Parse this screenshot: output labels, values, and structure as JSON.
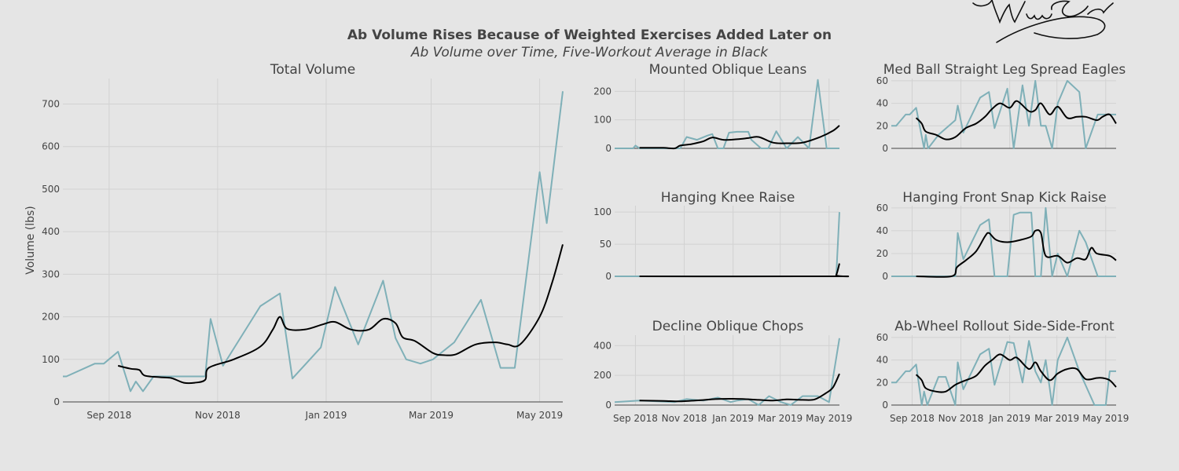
{
  "chart_title": "Ab Volume Rises Because of Weighted Exercises Added Later on",
  "chart_subtitle": "Ab Volume over Time, Five-Workout Average in Black",
  "colors": {
    "raw": "#7fb0b8",
    "avg": "#000000",
    "background": "#e5e5e5",
    "grid": "#d2d2d2"
  },
  "signature_icon": "handwritten-signature",
  "chart_data": [
    {
      "type": "line",
      "title": "Total Volume",
      "ylabel": "Volume (lbs)",
      "x_tick_labels": [
        "Sep 2018",
        "Nov 2018",
        "Jan 2019",
        "Mar 2019",
        "May 2019"
      ],
      "x_tick_dates": [
        "2018-09-01",
        "2018-11-01",
        "2019-01-01",
        "2019-03-01",
        "2019-05-01"
      ],
      "x_range": [
        "2018-08-06",
        "2019-05-14"
      ],
      "y_ticks": [
        0,
        100,
        200,
        300,
        400,
        500,
        600,
        700
      ],
      "ylim": [
        0,
        760
      ],
      "series": [
        {
          "role": "raw",
          "x": [
            "2018-08-06",
            "2018-08-08",
            "2018-08-24",
            "2018-08-29",
            "2018-09-06",
            "2018-09-13",
            "2018-09-16",
            "2018-09-20",
            "2018-09-26",
            "2018-10-04",
            "2018-10-25",
            "2018-10-28",
            "2018-11-04",
            "2018-11-25",
            "2018-12-06",
            "2018-12-13",
            "2018-12-29",
            "2019-01-06",
            "2019-01-19",
            "2019-02-02",
            "2019-02-09",
            "2019-02-15",
            "2019-02-23",
            "2019-03-02",
            "2019-03-14",
            "2019-03-29",
            "2019-04-09",
            "2019-04-17",
            "2019-05-01",
            "2019-05-05",
            "2019-05-14"
          ],
          "y": [
            60,
            60,
            90,
            90,
            118,
            25,
            48,
            25,
            60,
            60,
            60,
            195,
            85,
            225,
            255,
            55,
            128,
            270,
            135,
            285,
            150,
            100,
            90,
            100,
            140,
            240,
            80,
            80,
            540,
            420,
            730
          ]
        },
        {
          "role": "avg",
          "x": [
            "2018-09-06",
            "2018-09-13",
            "2018-09-18",
            "2018-09-21",
            "2018-09-30",
            "2018-10-06",
            "2018-10-13",
            "2018-10-19",
            "2018-10-25",
            "2018-10-27",
            "2018-11-10",
            "2018-11-25",
            "2018-12-02",
            "2018-12-06",
            "2018-12-10",
            "2018-12-20",
            "2018-12-30",
            "2019-01-06",
            "2019-01-15",
            "2019-01-25",
            "2019-02-02",
            "2019-02-09",
            "2019-02-13",
            "2019-02-20",
            "2019-03-02",
            "2019-03-08",
            "2019-03-15",
            "2019-03-26",
            "2019-04-06",
            "2019-04-13",
            "2019-04-20",
            "2019-05-01",
            "2019-05-08",
            "2019-05-14"
          ],
          "y": [
            85,
            78,
            75,
            62,
            58,
            56,
            45,
            45,
            52,
            80,
            100,
            130,
            170,
            200,
            172,
            170,
            182,
            188,
            170,
            170,
            195,
            185,
            152,
            143,
            115,
            110,
            112,
            135,
            140,
            135,
            135,
            200,
            280,
            370
          ]
        }
      ]
    },
    {
      "type": "line",
      "title": "Mounted Oblique Leans",
      "x_range": [
        "2018-08-06",
        "2019-05-14"
      ],
      "y_ticks": [
        0,
        100,
        200
      ],
      "ylim": [
        0,
        245
      ],
      "series": [
        {
          "role": "raw",
          "x": [
            "2018-08-06",
            "2018-08-29",
            "2018-09-01",
            "2018-09-06",
            "2018-10-20",
            "2018-10-27",
            "2018-11-04",
            "2018-11-17",
            "2018-11-30",
            "2018-12-06",
            "2018-12-13",
            "2018-12-20",
            "2018-12-27",
            "2019-01-06",
            "2019-01-20",
            "2019-01-24",
            "2019-02-05",
            "2019-02-14",
            "2019-02-24",
            "2019-03-09",
            "2019-03-23",
            "2019-04-06",
            "2019-04-17",
            "2019-04-28",
            "2019-05-04",
            "2019-05-09",
            "2019-05-14"
          ],
          "y": [
            0,
            0,
            10,
            0,
            0,
            0,
            40,
            30,
            45,
            50,
            0,
            0,
            55,
            58,
            58,
            30,
            0,
            0,
            60,
            0,
            40,
            0,
            240,
            0,
            0,
            0,
            0
          ]
        },
        {
          "role": "avg",
          "x": [
            "2018-09-06",
            "2018-09-20",
            "2018-10-06",
            "2018-10-20",
            "2018-10-27",
            "2018-11-10",
            "2018-11-25",
            "2018-12-06",
            "2018-12-20",
            "2019-01-06",
            "2019-01-20",
            "2019-02-02",
            "2019-02-20",
            "2019-03-09",
            "2019-03-29",
            "2019-04-20",
            "2019-05-06",
            "2019-05-14"
          ],
          "y": [
            2,
            2,
            2,
            0,
            10,
            15,
            25,
            38,
            30,
            32,
            36,
            40,
            20,
            18,
            20,
            40,
            62,
            80
          ]
        }
      ]
    },
    {
      "type": "line",
      "title": "Med Ball Straight Leg Spread Eagles",
      "x_range": [
        "2018-08-06",
        "2019-05-14"
      ],
      "y_ticks": [
        0,
        20,
        40,
        60
      ],
      "ylim": [
        0,
        62
      ],
      "series": [
        {
          "role": "raw",
          "x": [
            "2018-08-06",
            "2018-08-12",
            "2018-08-24",
            "2018-08-29",
            "2018-09-06",
            "2018-09-16",
            "2018-09-18",
            "2018-09-21",
            "2018-10-04",
            "2018-10-25",
            "2018-10-28",
            "2018-11-04",
            "2018-11-25",
            "2018-12-06",
            "2018-12-13",
            "2018-12-29",
            "2019-01-06",
            "2019-01-17",
            "2019-01-25",
            "2019-02-02",
            "2019-02-09",
            "2019-02-15",
            "2019-02-23",
            "2019-03-02",
            "2019-03-14",
            "2019-03-29",
            "2019-04-06",
            "2019-04-21",
            "2019-05-06",
            "2019-05-14"
          ],
          "y": [
            20,
            20,
            30,
            30,
            36,
            0,
            12,
            0,
            12,
            25,
            38,
            14,
            45,
            50,
            18,
            53,
            0,
            56,
            20,
            60,
            20,
            20,
            0,
            40,
            60,
            50,
            0,
            30,
            30,
            30
          ]
        },
        {
          "role": "avg",
          "x": [
            "2018-09-06",
            "2018-09-13",
            "2018-09-18",
            "2018-10-01",
            "2018-10-13",
            "2018-10-25",
            "2018-11-07",
            "2018-11-20",
            "2018-12-01",
            "2018-12-10",
            "2018-12-20",
            "2019-01-01",
            "2019-01-10",
            "2019-01-25",
            "2019-02-02",
            "2019-02-09",
            "2019-02-20",
            "2019-03-02",
            "2019-03-14",
            "2019-03-26",
            "2019-04-06",
            "2019-04-20",
            "2019-04-27",
            "2019-05-06",
            "2019-05-14"
          ],
          "y": [
            27,
            22,
            15,
            12,
            8,
            10,
            18,
            22,
            28,
            35,
            40,
            36,
            42,
            33,
            34,
            40,
            30,
            37,
            27,
            28,
            28,
            25,
            28,
            30,
            22
          ]
        }
      ]
    },
    {
      "type": "line",
      "title": "Hanging Knee Raise",
      "x_range": [
        "2018-08-06",
        "2019-05-14"
      ],
      "y_ticks": [
        0,
        50,
        100
      ],
      "ylim": [
        0,
        110
      ],
      "series": [
        {
          "role": "raw",
          "x": [
            "2018-08-06",
            "2019-05-08",
            "2019-05-10",
            "2019-05-14"
          ],
          "y": [
            0,
            0,
            0,
            100
          ]
        },
        {
          "role": "avg",
          "x": [
            "2018-09-06",
            "2019-05-06",
            "2019-05-10",
            "2019-05-14"
          ],
          "y": [
            0,
            0,
            2,
            20
          ]
        }
      ]
    },
    {
      "type": "line",
      "title": "Hanging Front Snap Kick Raise",
      "x_range": [
        "2018-08-06",
        "2019-05-14"
      ],
      "y_ticks": [
        0,
        20,
        40,
        60
      ],
      "ylim": [
        0,
        62
      ],
      "series": [
        {
          "role": "raw",
          "x": [
            "2018-08-06",
            "2018-10-20",
            "2018-10-25",
            "2018-10-28",
            "2018-11-04",
            "2018-11-25",
            "2018-12-06",
            "2018-12-13",
            "2018-12-29",
            "2019-01-06",
            "2019-01-14",
            "2019-01-28",
            "2019-02-02",
            "2019-02-09",
            "2019-02-15",
            "2019-02-23",
            "2019-03-02",
            "2019-03-14",
            "2019-03-29",
            "2019-04-06",
            "2019-04-21",
            "2019-05-06",
            "2019-05-14"
          ],
          "y": [
            0,
            0,
            0,
            38,
            15,
            45,
            50,
            0,
            0,
            54,
            56,
            56,
            0,
            0,
            60,
            0,
            20,
            0,
            40,
            30,
            0,
            0,
            0
          ]
        },
        {
          "role": "avg",
          "x": [
            "2018-09-06",
            "2018-10-20",
            "2018-10-27",
            "2018-11-07",
            "2018-11-20",
            "2018-12-01",
            "2018-12-06",
            "2018-12-15",
            "2018-12-29",
            "2019-01-15",
            "2019-01-28",
            "2019-02-02",
            "2019-02-09",
            "2019-02-15",
            "2019-03-02",
            "2019-03-14",
            "2019-03-26",
            "2019-04-06",
            "2019-04-13",
            "2019-04-20",
            "2019-05-06",
            "2019-05-14"
          ],
          "y": [
            0,
            0,
            8,
            14,
            22,
            35,
            38,
            32,
            30,
            32,
            35,
            40,
            38,
            18,
            18,
            12,
            16,
            15,
            25,
            20,
            18,
            14
          ]
        }
      ]
    },
    {
      "type": "line",
      "title": "Decline Oblique Chops",
      "x_tick_labels": [
        "Sep 2018",
        "Nov 2018",
        "Jan 2019",
        "Mar 2019",
        "May 2019"
      ],
      "x_tick_dates": [
        "2018-09-01",
        "2018-11-01",
        "2019-01-01",
        "2019-03-01",
        "2019-05-01"
      ],
      "x_range": [
        "2018-08-06",
        "2019-05-14"
      ],
      "y_ticks": [
        0,
        200,
        400
      ],
      "ylim": [
        0,
        470
      ],
      "series": [
        {
          "role": "raw",
          "x": [
            "2018-08-06",
            "2018-09-06",
            "2018-10-20",
            "2018-11-04",
            "2018-11-25",
            "2018-12-13",
            "2018-12-29",
            "2019-01-06",
            "2019-01-20",
            "2019-02-02",
            "2019-02-15",
            "2019-03-02",
            "2019-03-14",
            "2019-03-29",
            "2019-04-17",
            "2019-05-01",
            "2019-05-14"
          ],
          "y": [
            20,
            30,
            20,
            40,
            30,
            50,
            20,
            30,
            40,
            0,
            60,
            20,
            0,
            60,
            60,
            20,
            450
          ]
        },
        {
          "role": "avg",
          "x": [
            "2018-09-06",
            "2018-10-06",
            "2018-10-27",
            "2018-11-20",
            "2018-12-10",
            "2018-12-30",
            "2019-01-15",
            "2019-02-02",
            "2019-02-20",
            "2019-03-09",
            "2019-03-29",
            "2019-04-13",
            "2019-04-27",
            "2019-05-06",
            "2019-05-14"
          ],
          "y": [
            30,
            28,
            25,
            32,
            40,
            42,
            40,
            35,
            30,
            38,
            35,
            38,
            80,
            120,
            210
          ]
        }
      ]
    },
    {
      "type": "line",
      "title": "Ab-Wheel Rollout Side-Side-Front",
      "x_tick_labels": [
        "Sep 2018",
        "Nov 2018",
        "Jan 2019",
        "Mar 2019",
        "May 2019"
      ],
      "x_tick_dates": [
        "2018-09-01",
        "2018-11-01",
        "2019-01-01",
        "2019-03-01",
        "2019-05-01"
      ],
      "x_range": [
        "2018-08-06",
        "2019-05-14"
      ],
      "y_ticks": [
        0,
        20,
        40,
        60
      ],
      "ylim": [
        0,
        62
      ],
      "series": [
        {
          "role": "raw",
          "x": [
            "2018-08-06",
            "2018-08-12",
            "2018-08-24",
            "2018-08-29",
            "2018-09-06",
            "2018-09-13",
            "2018-09-16",
            "2018-09-20",
            "2018-10-04",
            "2018-10-13",
            "2018-10-25",
            "2018-10-28",
            "2018-11-04",
            "2018-11-25",
            "2018-12-06",
            "2018-12-13",
            "2018-12-29",
            "2019-01-06",
            "2019-01-17",
            "2019-01-25",
            "2019-02-02",
            "2019-02-09",
            "2019-02-15",
            "2019-02-23",
            "2019-03-02",
            "2019-03-14",
            "2019-03-29",
            "2019-04-17",
            "2019-05-01",
            "2019-05-06",
            "2019-05-14"
          ],
          "y": [
            20,
            20,
            30,
            30,
            36,
            0,
            12,
            0,
            25,
            25,
            0,
            38,
            14,
            45,
            50,
            18,
            56,
            55,
            20,
            57,
            30,
            20,
            40,
            0,
            40,
            60,
            30,
            0,
            0,
            30,
            30
          ]
        },
        {
          "role": "avg",
          "x": [
            "2018-09-06",
            "2018-09-13",
            "2018-09-18",
            "2018-10-01",
            "2018-10-13",
            "2018-10-25",
            "2018-11-07",
            "2018-11-20",
            "2018-12-01",
            "2018-12-10",
            "2018-12-20",
            "2019-01-01",
            "2019-01-10",
            "2019-01-25",
            "2019-02-02",
            "2019-02-09",
            "2019-02-20",
            "2019-03-02",
            "2019-03-14",
            "2019-03-26",
            "2019-04-06",
            "2019-04-20",
            "2019-04-27",
            "2019-05-06",
            "2019-05-14"
          ],
          "y": [
            27,
            22,
            15,
            12,
            12,
            18,
            22,
            26,
            35,
            40,
            45,
            40,
            42,
            32,
            38,
            30,
            22,
            28,
            32,
            32,
            23,
            24,
            24,
            22,
            16
          ]
        }
      ]
    }
  ]
}
